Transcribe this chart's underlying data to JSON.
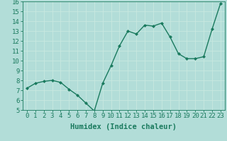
{
  "x": [
    0,
    1,
    2,
    3,
    4,
    5,
    6,
    7,
    8,
    9,
    10,
    11,
    12,
    13,
    14,
    15,
    16,
    17,
    18,
    19,
    20,
    21,
    22,
    23
  ],
  "y": [
    7.2,
    7.7,
    7.9,
    8.0,
    7.8,
    7.1,
    6.5,
    5.7,
    4.9,
    7.7,
    9.5,
    11.5,
    13.0,
    12.7,
    13.6,
    13.5,
    13.8,
    12.4,
    10.7,
    10.2,
    10.2,
    10.4,
    13.2,
    15.8
  ],
  "xlim": [
    -0.5,
    23.5
  ],
  "ylim": [
    5,
    16
  ],
  "yticks": [
    5,
    6,
    7,
    8,
    9,
    10,
    11,
    12,
    13,
    14,
    15,
    16
  ],
  "xticks": [
    0,
    1,
    2,
    3,
    4,
    5,
    6,
    7,
    8,
    9,
    10,
    11,
    12,
    13,
    14,
    15,
    16,
    17,
    18,
    19,
    20,
    21,
    22,
    23
  ],
  "xlabel": "Humidex (Indice chaleur)",
  "line_color": "#1a7a5e",
  "marker": "D",
  "marker_size": 2,
  "bg_color": "#b2ddd8",
  "grid_color": "#c8e8e0",
  "tick_label_fontsize": 6.5,
  "xlabel_fontsize": 7.5,
  "line_width": 1.0
}
